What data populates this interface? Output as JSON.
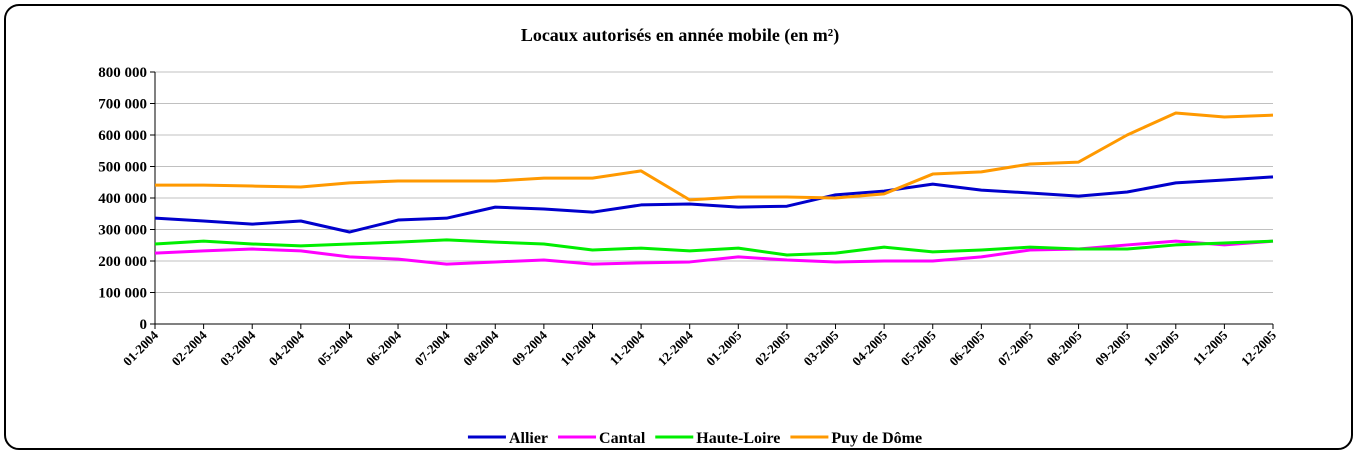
{
  "chart_data": {
    "type": "line",
    "title": "Locaux autorisés en année mobile (en m²)",
    "categories": [
      "01-2004",
      "02-2004",
      "03-2004",
      "04-2004",
      "05-2004",
      "06-2004",
      "07-2004",
      "08-2004",
      "09-2004",
      "10-2004",
      "11-2004",
      "12-2004",
      "01-2005",
      "02-2005",
      "03-2005",
      "04-2005",
      "05-2005",
      "06-2005",
      "07-2005",
      "08-2005",
      "09-2005",
      "10-2005",
      "11-2005",
      "12-2005"
    ],
    "series": [
      {
        "name": "Allier",
        "color": "#0000cc",
        "values": [
          336000,
          327000,
          317000,
          327000,
          292000,
          330000,
          336000,
          371000,
          365000,
          355000,
          378000,
          381000,
          371000,
          374000,
          410000,
          422000,
          444000,
          425000,
          416000,
          406000,
          419000,
          448000,
          457000,
          467000
        ]
      },
      {
        "name": "Cantal",
        "color": "#ff00ff",
        "values": [
          225000,
          232000,
          238000,
          232000,
          213000,
          206000,
          190000,
          197000,
          203000,
          190000,
          194000,
          197000,
          213000,
          203000,
          197000,
          200000,
          200000,
          213000,
          235000,
          238000,
          251000,
          263000,
          251000,
          263000
        ]
      },
      {
        "name": "Haute-Loire",
        "color": "#00ee00",
        "values": [
          254000,
          263000,
          254000,
          248000,
          254000,
          260000,
          267000,
          260000,
          254000,
          235000,
          241000,
          232000,
          241000,
          219000,
          225000,
          244000,
          229000,
          235000,
          244000,
          238000,
          238000,
          251000,
          257000,
          263000
        ]
      },
      {
        "name": "Puy de Dôme",
        "color": "#ff9900",
        "values": [
          441000,
          441000,
          438000,
          435000,
          448000,
          454000,
          454000,
          454000,
          463000,
          463000,
          486000,
          394000,
          403000,
          403000,
          400000,
          413000,
          476000,
          483000,
          508000,
          514000,
          600000,
          670000,
          657000,
          663000
        ]
      }
    ],
    "ylim": [
      0,
      800000
    ],
    "yticks": [
      0,
      {
        "value": 100000,
        "label": "100 000"
      },
      {
        "value": 200000,
        "label": "200 000"
      },
      {
        "value": 300000,
        "label": "300 000"
      },
      {
        "value": 400000,
        "label": "400 000"
      },
      {
        "value": 500000,
        "label": "500 000"
      },
      {
        "value": 600000,
        "label": "600 000"
      },
      {
        "value": 700000,
        "label": "700 000"
      },
      {
        "value": 800000,
        "label": "800 000"
      }
    ],
    "grid": true,
    "legend": "bottom"
  }
}
